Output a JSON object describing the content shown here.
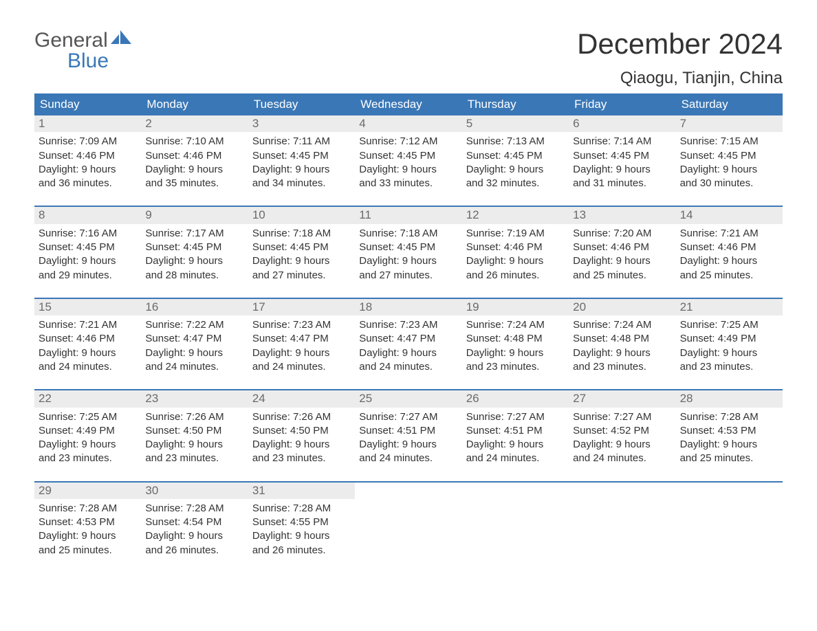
{
  "logo": {
    "text_general": "General",
    "text_blue": "Blue",
    "flag_color": "#3a77b6",
    "general_color": "#555555",
    "blue_color": "#3a77b6"
  },
  "title": {
    "month": "December 2024",
    "location": "Qiaogu, Tianjin, China"
  },
  "colors": {
    "header_bg": "#3a77b6",
    "header_text": "#ffffff",
    "daynum_bg": "#ececec",
    "daynum_text": "#6a6a6a",
    "body_text": "#333333",
    "week_border": "#3a77b6",
    "page_bg": "#ffffff"
  },
  "weekdays": [
    "Sunday",
    "Monday",
    "Tuesday",
    "Wednesday",
    "Thursday",
    "Friday",
    "Saturday"
  ],
  "weeks": [
    [
      {
        "num": "1",
        "sunrise": "Sunrise: 7:09 AM",
        "sunset": "Sunset: 4:46 PM",
        "d1": "Daylight: 9 hours",
        "d2": "and 36 minutes."
      },
      {
        "num": "2",
        "sunrise": "Sunrise: 7:10 AM",
        "sunset": "Sunset: 4:46 PM",
        "d1": "Daylight: 9 hours",
        "d2": "and 35 minutes."
      },
      {
        "num": "3",
        "sunrise": "Sunrise: 7:11 AM",
        "sunset": "Sunset: 4:45 PM",
        "d1": "Daylight: 9 hours",
        "d2": "and 34 minutes."
      },
      {
        "num": "4",
        "sunrise": "Sunrise: 7:12 AM",
        "sunset": "Sunset: 4:45 PM",
        "d1": "Daylight: 9 hours",
        "d2": "and 33 minutes."
      },
      {
        "num": "5",
        "sunrise": "Sunrise: 7:13 AM",
        "sunset": "Sunset: 4:45 PM",
        "d1": "Daylight: 9 hours",
        "d2": "and 32 minutes."
      },
      {
        "num": "6",
        "sunrise": "Sunrise: 7:14 AM",
        "sunset": "Sunset: 4:45 PM",
        "d1": "Daylight: 9 hours",
        "d2": "and 31 minutes."
      },
      {
        "num": "7",
        "sunrise": "Sunrise: 7:15 AM",
        "sunset": "Sunset: 4:45 PM",
        "d1": "Daylight: 9 hours",
        "d2": "and 30 minutes."
      }
    ],
    [
      {
        "num": "8",
        "sunrise": "Sunrise: 7:16 AM",
        "sunset": "Sunset: 4:45 PM",
        "d1": "Daylight: 9 hours",
        "d2": "and 29 minutes."
      },
      {
        "num": "9",
        "sunrise": "Sunrise: 7:17 AM",
        "sunset": "Sunset: 4:45 PM",
        "d1": "Daylight: 9 hours",
        "d2": "and 28 minutes."
      },
      {
        "num": "10",
        "sunrise": "Sunrise: 7:18 AM",
        "sunset": "Sunset: 4:45 PM",
        "d1": "Daylight: 9 hours",
        "d2": "and 27 minutes."
      },
      {
        "num": "11",
        "sunrise": "Sunrise: 7:18 AM",
        "sunset": "Sunset: 4:45 PM",
        "d1": "Daylight: 9 hours",
        "d2": "and 27 minutes."
      },
      {
        "num": "12",
        "sunrise": "Sunrise: 7:19 AM",
        "sunset": "Sunset: 4:46 PM",
        "d1": "Daylight: 9 hours",
        "d2": "and 26 minutes."
      },
      {
        "num": "13",
        "sunrise": "Sunrise: 7:20 AM",
        "sunset": "Sunset: 4:46 PM",
        "d1": "Daylight: 9 hours",
        "d2": "and 25 minutes."
      },
      {
        "num": "14",
        "sunrise": "Sunrise: 7:21 AM",
        "sunset": "Sunset: 4:46 PM",
        "d1": "Daylight: 9 hours",
        "d2": "and 25 minutes."
      }
    ],
    [
      {
        "num": "15",
        "sunrise": "Sunrise: 7:21 AM",
        "sunset": "Sunset: 4:46 PM",
        "d1": "Daylight: 9 hours",
        "d2": "and 24 minutes."
      },
      {
        "num": "16",
        "sunrise": "Sunrise: 7:22 AM",
        "sunset": "Sunset: 4:47 PM",
        "d1": "Daylight: 9 hours",
        "d2": "and 24 minutes."
      },
      {
        "num": "17",
        "sunrise": "Sunrise: 7:23 AM",
        "sunset": "Sunset: 4:47 PM",
        "d1": "Daylight: 9 hours",
        "d2": "and 24 minutes."
      },
      {
        "num": "18",
        "sunrise": "Sunrise: 7:23 AM",
        "sunset": "Sunset: 4:47 PM",
        "d1": "Daylight: 9 hours",
        "d2": "and 24 minutes."
      },
      {
        "num": "19",
        "sunrise": "Sunrise: 7:24 AM",
        "sunset": "Sunset: 4:48 PM",
        "d1": "Daylight: 9 hours",
        "d2": "and 23 minutes."
      },
      {
        "num": "20",
        "sunrise": "Sunrise: 7:24 AM",
        "sunset": "Sunset: 4:48 PM",
        "d1": "Daylight: 9 hours",
        "d2": "and 23 minutes."
      },
      {
        "num": "21",
        "sunrise": "Sunrise: 7:25 AM",
        "sunset": "Sunset: 4:49 PM",
        "d1": "Daylight: 9 hours",
        "d2": "and 23 minutes."
      }
    ],
    [
      {
        "num": "22",
        "sunrise": "Sunrise: 7:25 AM",
        "sunset": "Sunset: 4:49 PM",
        "d1": "Daylight: 9 hours",
        "d2": "and 23 minutes."
      },
      {
        "num": "23",
        "sunrise": "Sunrise: 7:26 AM",
        "sunset": "Sunset: 4:50 PM",
        "d1": "Daylight: 9 hours",
        "d2": "and 23 minutes."
      },
      {
        "num": "24",
        "sunrise": "Sunrise: 7:26 AM",
        "sunset": "Sunset: 4:50 PM",
        "d1": "Daylight: 9 hours",
        "d2": "and 23 minutes."
      },
      {
        "num": "25",
        "sunrise": "Sunrise: 7:27 AM",
        "sunset": "Sunset: 4:51 PM",
        "d1": "Daylight: 9 hours",
        "d2": "and 24 minutes."
      },
      {
        "num": "26",
        "sunrise": "Sunrise: 7:27 AM",
        "sunset": "Sunset: 4:51 PM",
        "d1": "Daylight: 9 hours",
        "d2": "and 24 minutes."
      },
      {
        "num": "27",
        "sunrise": "Sunrise: 7:27 AM",
        "sunset": "Sunset: 4:52 PM",
        "d1": "Daylight: 9 hours",
        "d2": "and 24 minutes."
      },
      {
        "num": "28",
        "sunrise": "Sunrise: 7:28 AM",
        "sunset": "Sunset: 4:53 PM",
        "d1": "Daylight: 9 hours",
        "d2": "and 25 minutes."
      }
    ],
    [
      {
        "num": "29",
        "sunrise": "Sunrise: 7:28 AM",
        "sunset": "Sunset: 4:53 PM",
        "d1": "Daylight: 9 hours",
        "d2": "and 25 minutes."
      },
      {
        "num": "30",
        "sunrise": "Sunrise: 7:28 AM",
        "sunset": "Sunset: 4:54 PM",
        "d1": "Daylight: 9 hours",
        "d2": "and 26 minutes."
      },
      {
        "num": "31",
        "sunrise": "Sunrise: 7:28 AM",
        "sunset": "Sunset: 4:55 PM",
        "d1": "Daylight: 9 hours",
        "d2": "and 26 minutes."
      },
      null,
      null,
      null,
      null
    ]
  ]
}
